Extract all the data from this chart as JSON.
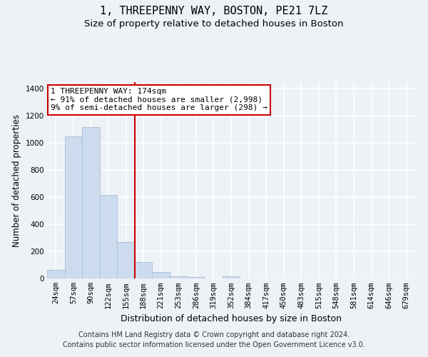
{
  "title": "1, THREEPENNY WAY, BOSTON, PE21 7LZ",
  "subtitle": "Size of property relative to detached houses in Boston",
  "xlabel": "Distribution of detached houses by size in Boston",
  "ylabel": "Number of detached properties",
  "footer_line1": "Contains HM Land Registry data © Crown copyright and database right 2024.",
  "footer_line2": "Contains public sector information licensed under the Open Government Licence v3.0.",
  "categories": [
    "24sqm",
    "57sqm",
    "90sqm",
    "122sqm",
    "155sqm",
    "188sqm",
    "221sqm",
    "253sqm",
    "286sqm",
    "319sqm",
    "352sqm",
    "384sqm",
    "417sqm",
    "450sqm",
    "483sqm",
    "515sqm",
    "548sqm",
    "581sqm",
    "614sqm",
    "646sqm",
    "679sqm"
  ],
  "values": [
    65,
    1048,
    1120,
    615,
    270,
    120,
    45,
    18,
    12,
    0,
    18,
    0,
    0,
    0,
    0,
    0,
    0,
    0,
    0,
    0,
    0
  ],
  "bar_color": "#ccdcee",
  "bar_edge_color": "#aabdd4",
  "vline_index": 4.5,
  "vline_color": "#cc0000",
  "annotation_text": "1 THREEPENNY WAY: 174sqm\n← 91% of detached houses are smaller (2,998)\n9% of semi-detached houses are larger (298) →",
  "annotation_box_facecolor": "#ffffff",
  "annotation_box_edgecolor": "#cc0000",
  "ylim": [
    0,
    1450
  ],
  "yticks": [
    0,
    200,
    400,
    600,
    800,
    1000,
    1200,
    1400
  ],
  "bg_color": "#edf2f7",
  "grid_color": "#ffffff",
  "title_fontsize": 11,
  "subtitle_fontsize": 9.5,
  "ylabel_fontsize": 8.5,
  "xlabel_fontsize": 9,
  "tick_fontsize": 7.5,
  "annot_fontsize": 8,
  "footer_fontsize": 7
}
